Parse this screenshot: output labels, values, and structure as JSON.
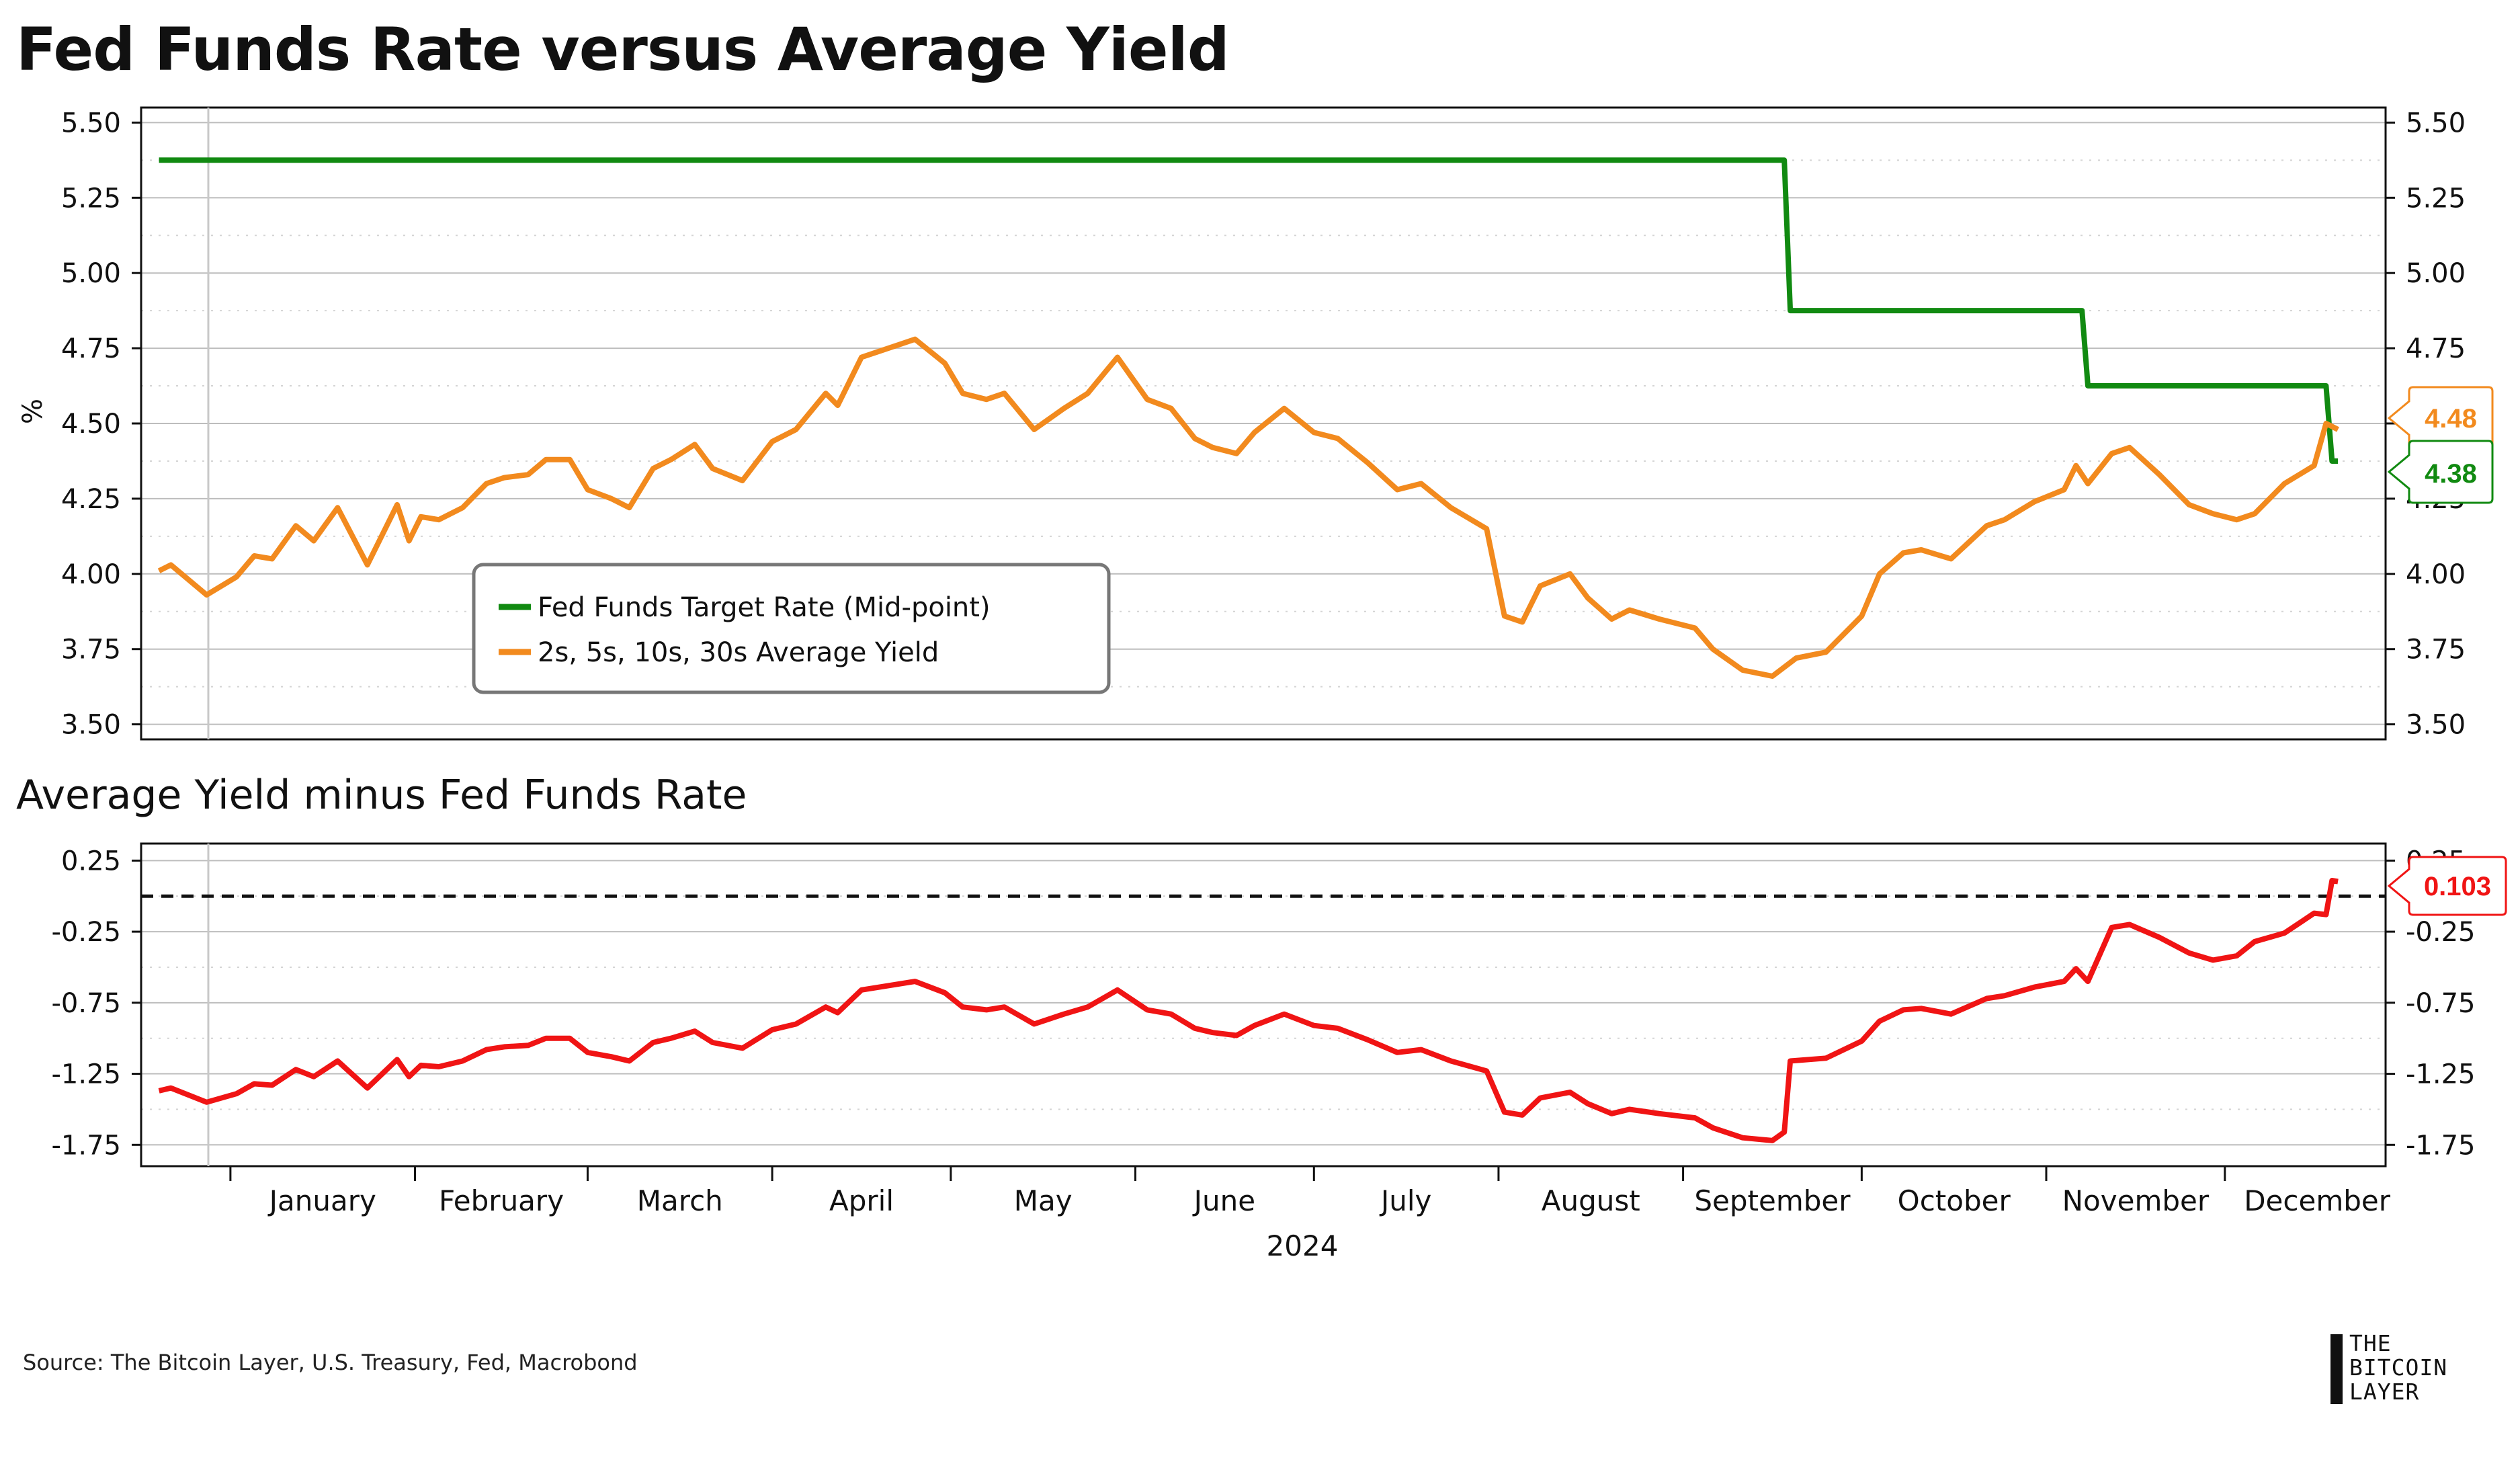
{
  "title": "Fed Funds Rate versus Average Yield",
  "subtitle": "Average Yield minus Fed Funds Rate",
  "source": "Source: The Bitcoin Layer, U.S. Treasury, Fed, Macrobond",
  "logo_lines": [
    "THE",
    "BITCOIN",
    "LAYER"
  ],
  "colors": {
    "fed": "#118a11",
    "yield": "#f28a1e",
    "spread": "#f01414",
    "grid": "#bdbdbd"
  },
  "chart_data": [
    {
      "type": "line",
      "title": "Fed Funds Rate versus Average Yield",
      "ylabel": "%",
      "ylim": [
        3.45,
        5.55
      ],
      "y_ticks": [
        "5.50",
        "5.25",
        "5.00",
        "4.75",
        "4.50",
        "4.25",
        "4.00",
        "3.75",
        "3.50"
      ],
      "x_axis": {
        "months": [
          "January",
          "February",
          "March",
          "April",
          "May",
          "June",
          "July",
          "August",
          "September",
          "October",
          "November",
          "December"
        ],
        "year_label": "2024"
      },
      "legend_placement": "lower-left",
      "series": [
        {
          "name": "Fed Funds Target Rate (Mid-point)",
          "color": "#118a11",
          "last_value_label": "4.38",
          "x": [
            "2023-12-20",
            "2024-09-18",
            "2024-09-19",
            "2024-11-07",
            "2024-11-08",
            "2024-12-18",
            "2024-12-19",
            "2024-12-20"
          ],
          "values": [
            5.375,
            5.375,
            4.875,
            4.875,
            4.625,
            4.625,
            4.375,
            4.375
          ]
        },
        {
          "name": "2s, 5s, 10s, 30s Average Yield",
          "color": "#f28a1e",
          "last_value_label": "4.48",
          "x": [
            "2023-12-20",
            "2023-12-22",
            "2023-12-28",
            "2024-01-02",
            "2024-01-05",
            "2024-01-08",
            "2024-01-12",
            "2024-01-15",
            "2024-01-19",
            "2024-01-24",
            "2024-01-29",
            "2024-01-31",
            "2024-02-02",
            "2024-02-05",
            "2024-02-09",
            "2024-02-13",
            "2024-02-16",
            "2024-02-20",
            "2024-02-23",
            "2024-02-27",
            "2024-03-01",
            "2024-03-05",
            "2024-03-08",
            "2024-03-12",
            "2024-03-15",
            "2024-03-19",
            "2024-03-22",
            "2024-03-27",
            "2024-04-01",
            "2024-04-05",
            "2024-04-10",
            "2024-04-12",
            "2024-04-16",
            "2024-04-19",
            "2024-04-25",
            "2024-04-30",
            "2024-05-03",
            "2024-05-07",
            "2024-05-10",
            "2024-05-15",
            "2024-05-20",
            "2024-05-24",
            "2024-05-29",
            "2024-06-03",
            "2024-06-07",
            "2024-06-11",
            "2024-06-14",
            "2024-06-18",
            "2024-06-21",
            "2024-06-26",
            "2024-07-01",
            "2024-07-05",
            "2024-07-10",
            "2024-07-15",
            "2024-07-19",
            "2024-07-24",
            "2024-07-30",
            "2024-08-02",
            "2024-08-05",
            "2024-08-08",
            "2024-08-13",
            "2024-08-16",
            "2024-08-20",
            "2024-08-23",
            "2024-08-28",
            "2024-09-03",
            "2024-09-06",
            "2024-09-11",
            "2024-09-16",
            "2024-09-20",
            "2024-09-25",
            "2024-10-01",
            "2024-10-04",
            "2024-10-08",
            "2024-10-11",
            "2024-10-16",
            "2024-10-22",
            "2024-10-25",
            "2024-10-30",
            "2024-11-04",
            "2024-11-06",
            "2024-11-08",
            "2024-11-12",
            "2024-11-15",
            "2024-11-20",
            "2024-11-25",
            "2024-11-29",
            "2024-12-03",
            "2024-12-06",
            "2024-12-11",
            "2024-12-16",
            "2024-12-18",
            "2024-12-20"
          ],
          "values": [
            4.01,
            4.03,
            3.93,
            3.99,
            4.06,
            4.05,
            4.16,
            4.11,
            4.22,
            4.03,
            4.23,
            4.11,
            4.19,
            4.18,
            4.22,
            4.3,
            4.32,
            4.33,
            4.38,
            4.38,
            4.28,
            4.25,
            4.22,
            4.35,
            4.38,
            4.43,
            4.35,
            4.31,
            4.44,
            4.48,
            4.6,
            4.56,
            4.72,
            4.74,
            4.78,
            4.7,
            4.6,
            4.58,
            4.6,
            4.48,
            4.55,
            4.6,
            4.72,
            4.58,
            4.55,
            4.45,
            4.42,
            4.4,
            4.47,
            4.55,
            4.47,
            4.45,
            4.37,
            4.28,
            4.3,
            4.22,
            4.15,
            3.86,
            3.84,
            3.96,
            4.0,
            3.92,
            3.85,
            3.88,
            3.85,
            3.82,
            3.75,
            3.68,
            3.66,
            3.72,
            3.74,
            3.86,
            4.0,
            4.07,
            4.08,
            4.05,
            4.16,
            4.18,
            4.24,
            4.28,
            4.36,
            4.3,
            4.4,
            4.42,
            4.33,
            4.23,
            4.2,
            4.18,
            4.2,
            4.3,
            4.36,
            4.5,
            4.48
          ]
        }
      ]
    },
    {
      "type": "line",
      "title": "Average Yield minus Fed Funds Rate",
      "ylim": [
        -1.9,
        0.37
      ],
      "y_ticks": [
        "0.25",
        "-0.25",
        "-0.75",
        "-1.25",
        "-1.75"
      ],
      "reference_line": {
        "value": 0,
        "style": "dashed"
      },
      "series": [
        {
          "name": "Average Yield minus Fed Funds Rate",
          "color": "#f01414",
          "last_value_label": "0.103",
          "x": [
            "2023-12-20",
            "2023-12-22",
            "2023-12-28",
            "2024-01-02",
            "2024-01-05",
            "2024-01-08",
            "2024-01-12",
            "2024-01-15",
            "2024-01-19",
            "2024-01-24",
            "2024-01-29",
            "2024-01-31",
            "2024-02-02",
            "2024-02-05",
            "2024-02-09",
            "2024-02-13",
            "2024-02-16",
            "2024-02-20",
            "2024-02-23",
            "2024-02-27",
            "2024-03-01",
            "2024-03-05",
            "2024-03-08",
            "2024-03-12",
            "2024-03-15",
            "2024-03-19",
            "2024-03-22",
            "2024-03-27",
            "2024-04-01",
            "2024-04-05",
            "2024-04-10",
            "2024-04-12",
            "2024-04-16",
            "2024-04-19",
            "2024-04-25",
            "2024-04-30",
            "2024-05-03",
            "2024-05-07",
            "2024-05-10",
            "2024-05-15",
            "2024-05-20",
            "2024-05-24",
            "2024-05-29",
            "2024-06-03",
            "2024-06-07",
            "2024-06-11",
            "2024-06-14",
            "2024-06-18",
            "2024-06-21",
            "2024-06-26",
            "2024-07-01",
            "2024-07-05",
            "2024-07-10",
            "2024-07-15",
            "2024-07-19",
            "2024-07-24",
            "2024-07-30",
            "2024-08-02",
            "2024-08-05",
            "2024-08-08",
            "2024-08-13",
            "2024-08-16",
            "2024-08-20",
            "2024-08-23",
            "2024-08-28",
            "2024-09-03",
            "2024-09-06",
            "2024-09-11",
            "2024-09-16",
            "2024-09-18",
            "2024-09-19",
            "2024-09-25",
            "2024-10-01",
            "2024-10-04",
            "2024-10-08",
            "2024-10-11",
            "2024-10-16",
            "2024-10-22",
            "2024-10-25",
            "2024-10-30",
            "2024-11-04",
            "2024-11-06",
            "2024-11-08",
            "2024-11-12",
            "2024-11-15",
            "2024-11-20",
            "2024-11-25",
            "2024-11-29",
            "2024-12-03",
            "2024-12-06",
            "2024-12-11",
            "2024-12-16",
            "2024-12-18",
            "2024-12-19",
            "2024-12-20"
          ],
          "values": [
            -1.37,
            -1.35,
            -1.45,
            -1.39,
            -1.32,
            -1.33,
            -1.22,
            -1.27,
            -1.16,
            -1.35,
            -1.15,
            -1.27,
            -1.19,
            -1.2,
            -1.16,
            -1.08,
            -1.06,
            -1.05,
            -1.0,
            -1.0,
            -1.1,
            -1.13,
            -1.16,
            -1.03,
            -1.0,
            -0.95,
            -1.03,
            -1.07,
            -0.94,
            -0.9,
            -0.78,
            -0.82,
            -0.66,
            -0.64,
            -0.6,
            -0.68,
            -0.78,
            -0.8,
            -0.78,
            -0.9,
            -0.83,
            -0.78,
            -0.66,
            -0.8,
            -0.83,
            -0.93,
            -0.96,
            -0.98,
            -0.91,
            -0.83,
            -0.91,
            -0.93,
            -1.01,
            -1.1,
            -1.08,
            -1.16,
            -1.23,
            -1.52,
            -1.54,
            -1.42,
            -1.38,
            -1.46,
            -1.53,
            -1.5,
            -1.53,
            -1.56,
            -1.63,
            -1.7,
            -1.72,
            -1.66,
            -1.16,
            -1.14,
            -1.02,
            -0.88,
            -0.8,
            -0.79,
            -0.83,
            -0.72,
            -0.7,
            -0.64,
            -0.6,
            -0.51,
            -0.6,
            -0.22,
            -0.2,
            -0.29,
            -0.4,
            -0.45,
            -0.42,
            -0.32,
            -0.26,
            -0.12,
            -0.13,
            0.11,
            0.103
          ]
        }
      ]
    }
  ]
}
